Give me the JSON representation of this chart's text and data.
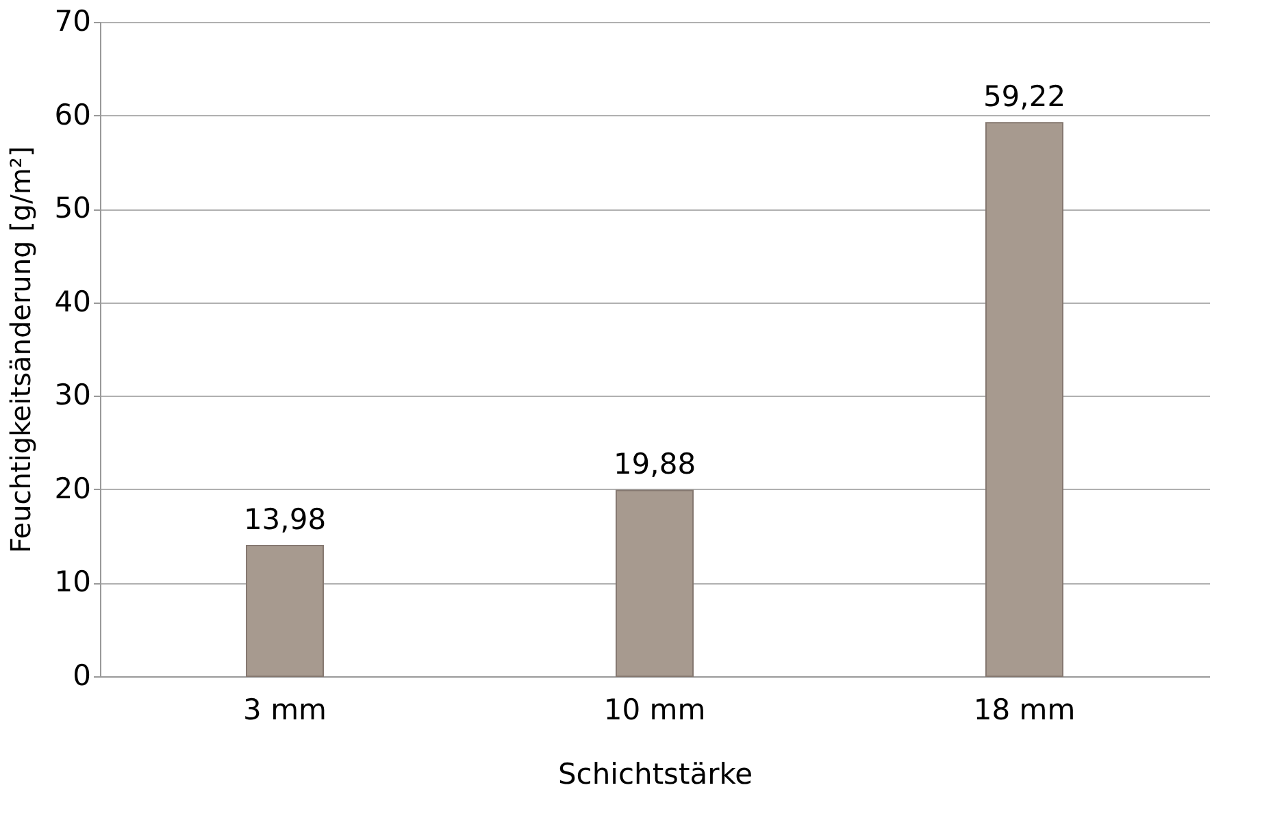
{
  "chart_data": {
    "type": "bar",
    "xlabel": "Schichtstärke",
    "ylabel": "Feuchtigkeitsänderung [g/m²]",
    "categories": [
      "3 mm",
      "10 mm",
      "18 mm"
    ],
    "values": [
      13.98,
      19.88,
      59.22
    ],
    "value_labels": [
      "13,98",
      "19,88",
      "59,22"
    ],
    "color": "#a79a8f",
    "ylim": [
      0,
      70
    ],
    "yticks": [
      0,
      10,
      20,
      30,
      40,
      50,
      60,
      70
    ],
    "grid": "y"
  }
}
